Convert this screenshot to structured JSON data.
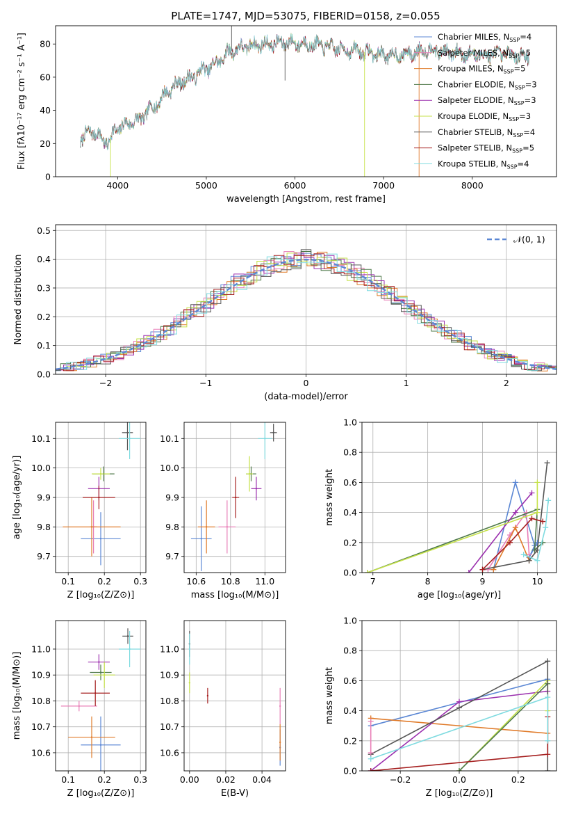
{
  "figure": {
    "title": "PLATE=1747, MJD=53075, FIBERID=0158, z=0.055"
  },
  "colors": {
    "chabrier_miles": "#5b87d4",
    "salpeter_miles": "#e87fb7",
    "kroupa_miles": "#e07b2a",
    "chabrier_elodie": "#4f7a4a",
    "salpeter_elodie": "#9b2fae",
    "kroupa_elodie": "#c6e24a",
    "chabrier_stelib": "#555555",
    "salpeter_stelib": "#a51e1e",
    "kroupa_stelib": "#7fdbe0",
    "normal_line": "#5b87d4"
  },
  "chart_data": [
    {
      "id": "spectrum",
      "type": "line",
      "title": "PLATE=1747, MJD=53075, FIBERID=0158, z=0.055",
      "xlabel": "wavelength [Angstrom, rest frame]",
      "ylabel": "Flux [fλ10⁻¹⁷ erg cm⁻² s⁻¹ A⁻¹]",
      "xlim": [
        3300,
        8950
      ],
      "ylim": [
        0,
        91
      ],
      "xticks": [
        4000,
        5000,
        6000,
        7000,
        8000
      ],
      "yticks": [
        0,
        20,
        40,
        60,
        80
      ],
      "grid": false,
      "legend_position": "top-right",
      "series": [
        {
          "name": "Chabrier MILES, N",
          "sub": "SSP",
          "suffix": "=4"
        },
        {
          "name": "Salpeter MILES, N",
          "sub": "SSP",
          "suffix": "=5"
        },
        {
          "name": "Kroupa MILES, N",
          "sub": "SSP",
          "suffix": "=5"
        },
        {
          "name": "Chabrier ELODIE, N",
          "sub": "SSP",
          "suffix": "=3"
        },
        {
          "name": "Salpeter ELODIE, N",
          "sub": "SSP",
          "suffix": "=3"
        },
        {
          "name": "Kroupa ELODIE, N",
          "sub": "SSP",
          "suffix": "=3"
        },
        {
          "name": "Chabrier STELIB, N",
          "sub": "SSP",
          "suffix": "=4"
        },
        {
          "name": "Salpeter STELIB, N",
          "sub": "SSP",
          "suffix": "=5"
        },
        {
          "name": "Kroupa STELIB, N",
          "sub": "SSP",
          "suffix": "=4"
        }
      ],
      "continuum": [
        [
          3580,
          22
        ],
        [
          3700,
          28
        ],
        [
          3800,
          24
        ],
        [
          3900,
          20
        ],
        [
          3960,
          28
        ],
        [
          4050,
          30
        ],
        [
          4150,
          33
        ],
        [
          4250,
          34
        ],
        [
          4350,
          40
        ],
        [
          4450,
          44
        ],
        [
          4550,
          51
        ],
        [
          4650,
          55
        ],
        [
          4750,
          58
        ],
        [
          4850,
          60
        ],
        [
          4950,
          64
        ],
        [
          5050,
          66
        ],
        [
          5150,
          70
        ],
        [
          5250,
          75
        ],
        [
          5350,
          77
        ],
        [
          5500,
          79
        ],
        [
          5700,
          80
        ],
        [
          5900,
          81
        ],
        [
          6100,
          80
        ],
        [
          6300,
          79
        ],
        [
          6500,
          77
        ],
        [
          6700,
          76
        ],
        [
          6900,
          74
        ],
        [
          7100,
          73
        ],
        [
          7300,
          74
        ],
        [
          7500,
          77
        ],
        [
          7700,
          75
        ],
        [
          7900,
          74
        ],
        [
          8100,
          73
        ],
        [
          8300,
          74
        ],
        [
          8500,
          73
        ],
        [
          8640,
          73
        ]
      ],
      "spikes": [
        {
          "x": 3920,
          "y": 0,
          "series": 5
        },
        {
          "x": 5285,
          "y": 91,
          "series": 6
        },
        {
          "x": 5888,
          "y": 58,
          "series": 6
        },
        {
          "x": 6785,
          "y": 0,
          "series": 5
        },
        {
          "x": 7400,
          "y": 0,
          "series": 2
        }
      ]
    },
    {
      "id": "residuals",
      "type": "line",
      "xlabel": "(data-model)/error",
      "ylabel": "Normed distribution",
      "xlim": [
        -2.5,
        2.5
      ],
      "ylim": [
        0,
        0.52
      ],
      "xticks": [
        -2,
        -1,
        0,
        1,
        2
      ],
      "yticks": [
        0.0,
        0.1,
        0.2,
        0.3,
        0.4,
        0.5
      ],
      "grid": true,
      "legend_position": "top-right",
      "reference": {
        "name": "𝒩(0, 1)",
        "mu": 0,
        "sigma": 1
      }
    },
    {
      "id": "age_vs_z",
      "type": "scatter",
      "xlabel": "Z [log₁₀(Z/Z⊙)]",
      "ylabel": "age  [log₁₀(age/yr)]",
      "xlim": [
        0.065,
        0.315
      ],
      "ylim": [
        9.645,
        10.155
      ],
      "xticks": [
        0.1,
        0.2,
        0.3
      ],
      "yticks": [
        9.7,
        9.8,
        9.9,
        10.0,
        10.1
      ],
      "grid": true,
      "points": [
        {
          "series": 0,
          "x": 0.19,
          "y": 9.76,
          "xerr": 0.055,
          "yerr": 0.09
        },
        {
          "series": 1,
          "x": 0.17,
          "y": 9.8,
          "xerr": 0.01,
          "yerr": 0.09
        },
        {
          "series": 2,
          "x": 0.165,
          "y": 9.8,
          "xerr": 0.08,
          "yerr": 0.1
        },
        {
          "series": 3,
          "x": 0.198,
          "y": 9.98,
          "xerr": 0.03,
          "yerr": 0.025
        },
        {
          "series": 4,
          "x": 0.185,
          "y": 9.93,
          "xerr": 0.03,
          "yerr": 0.04
        },
        {
          "series": 5,
          "x": 0.19,
          "y": 9.98,
          "xerr": 0.025,
          "yerr": 0.02
        },
        {
          "series": 6,
          "x": 0.264,
          "y": 10.12,
          "xerr": 0.015,
          "yerr": 0.06
        },
        {
          "series": 7,
          "x": 0.185,
          "y": 9.9,
          "xerr": 0.045,
          "yerr": 0.04
        },
        {
          "series": 8,
          "x": 0.27,
          "y": 10.1,
          "xerr": 0.03,
          "yerr": 0.07
        }
      ]
    },
    {
      "id": "age_vs_mass",
      "type": "scatter",
      "xlabel": "mass [log₁₀(M/M⊙)]",
      "ylabel": "",
      "xlim": [
        10.53,
        11.12
      ],
      "ylim": [
        9.645,
        10.155
      ],
      "xticks": [
        10.6,
        10.8,
        11.0
      ],
      "yticks": [
        9.7,
        9.8,
        9.9,
        10.0,
        10.1
      ],
      "grid": true,
      "points": [
        {
          "series": 0,
          "x": 10.63,
          "y": 9.76,
          "xerr": 0.06,
          "yerr": 0.11
        },
        {
          "series": 1,
          "x": 10.78,
          "y": 9.8,
          "xerr": 0.05,
          "yerr": 0.09
        },
        {
          "series": 2,
          "x": 10.66,
          "y": 9.8,
          "xerr": 0.05,
          "yerr": 0.09
        },
        {
          "series": 3,
          "x": 10.92,
          "y": 9.98,
          "xerr": 0.03,
          "yerr": 0.025
        },
        {
          "series": 4,
          "x": 10.95,
          "y": 9.93,
          "xerr": 0.03,
          "yerr": 0.04
        },
        {
          "series": 5,
          "x": 10.91,
          "y": 9.98,
          "xerr": 0.02,
          "yerr": 0.06
        },
        {
          "series": 6,
          "x": 11.05,
          "y": 10.12,
          "xerr": 0.02,
          "yerr": 0.03
        },
        {
          "series": 7,
          "x": 10.83,
          "y": 9.9,
          "xerr": 0.02,
          "yerr": 0.07
        },
        {
          "series": 8,
          "x": 11.0,
          "y": 10.1,
          "xerr": 0.04,
          "yerr": 0.07
        }
      ]
    },
    {
      "id": "weight_vs_age",
      "type": "line",
      "xlabel": "age  [log₁₀(age/yr)]",
      "ylabel": "mass weight",
      "xlim": [
        6.8,
        10.35
      ],
      "ylim": [
        0,
        1.0
      ],
      "xticks": [
        7,
        8,
        9,
        10
      ],
      "yticks": [
        0.0,
        0.2,
        0.4,
        0.6,
        0.8,
        1.0
      ],
      "grid": true,
      "lines": [
        {
          "series": 0,
          "points": [
            [
              9.2,
              0.02
            ],
            [
              9.6,
              0.6
            ],
            [
              9.95,
              0.18
            ],
            [
              9.85,
              0.1
            ],
            [
              10.0,
              0.2
            ]
          ]
        },
        {
          "series": 1,
          "points": [
            [
              9.1,
              0.02
            ],
            [
              9.5,
              0.25
            ],
            [
              9.8,
              0.4
            ],
            [
              9.85,
              0.12
            ]
          ]
        },
        {
          "series": 2,
          "points": [
            [
              9.2,
              0.02
            ],
            [
              9.6,
              0.3
            ],
            [
              9.85,
              0.08
            ],
            [
              10.0,
              0.15
            ]
          ]
        },
        {
          "series": 3,
          "points": [
            [
              6.9,
              0.0
            ],
            [
              10.0,
              0.42
            ],
            [
              9.95,
              0.15
            ],
            [
              10.1,
              0.2
            ]
          ]
        },
        {
          "series": 4,
          "points": [
            [
              8.75,
              0.0
            ],
            [
              9.6,
              0.4
            ],
            [
              9.9,
              0.53
            ]
          ]
        },
        {
          "series": 5,
          "points": [
            [
              6.9,
              0.0
            ],
            [
              10.0,
              0.4
            ],
            [
              10.0,
              0.6
            ]
          ]
        },
        {
          "series": 6,
          "points": [
            [
              9.0,
              0.02
            ],
            [
              9.85,
              0.08
            ],
            [
              10.0,
              0.15
            ],
            [
              10.18,
              0.73
            ]
          ]
        },
        {
          "series": 7,
          "points": [
            [
              9.0,
              0.02
            ],
            [
              9.5,
              0.2
            ],
            [
              9.9,
              0.36
            ],
            [
              10.1,
              0.34
            ]
          ]
        },
        {
          "series": 8,
          "points": [
            [
              9.75,
              0.12
            ],
            [
              10.0,
              0.08
            ],
            [
              10.15,
              0.3
            ],
            [
              10.2,
              0.48
            ]
          ]
        }
      ]
    },
    {
      "id": "mass_vs_z",
      "type": "scatter",
      "xlabel": "Z [log₁₀(Z/Z⊙)]",
      "ylabel": "mass [log₁₀(M/M⊙)]",
      "xlim": [
        0.065,
        0.315
      ],
      "ylim": [
        10.53,
        11.11
      ],
      "xticks": [
        0.1,
        0.2,
        0.3
      ],
      "yticks": [
        10.6,
        10.7,
        10.8,
        10.9,
        11.0
      ],
      "grid": true,
      "points": [
        {
          "series": 0,
          "x": 0.19,
          "y": 10.63,
          "xerr": 0.055,
          "yerr": 0.11
        },
        {
          "series": 1,
          "x": 0.13,
          "y": 10.78,
          "xerr": 0.05,
          "yerr": 0.02
        },
        {
          "series": 2,
          "x": 0.165,
          "y": 10.66,
          "xerr": 0.065,
          "yerr": 0.08
        },
        {
          "series": 3,
          "x": 0.19,
          "y": 10.91,
          "xerr": 0.03,
          "yerr": 0.03
        },
        {
          "series": 4,
          "x": 0.185,
          "y": 10.95,
          "xerr": 0.03,
          "yerr": 0.03
        },
        {
          "series": 5,
          "x": 0.2,
          "y": 10.9,
          "xerr": 0.03,
          "yerr": 0.05
        },
        {
          "series": 6,
          "x": 0.265,
          "y": 11.05,
          "xerr": 0.015,
          "yerr": 0.03
        },
        {
          "series": 7,
          "x": 0.175,
          "y": 10.83,
          "xerr": 0.04,
          "yerr": 0.05
        },
        {
          "series": 8,
          "x": 0.27,
          "y": 11.0,
          "xerr": 0.03,
          "yerr": 0.07
        }
      ]
    },
    {
      "id": "mass_vs_ebv",
      "type": "scatter",
      "xlabel": "E(B-V)",
      "ylabel": "",
      "xlim": [
        -0.003,
        0.053
      ],
      "ylim": [
        10.53,
        11.11
      ],
      "xticks": [
        0.0,
        0.02,
        0.04
      ],
      "yticks": [
        10.6,
        10.7,
        10.8,
        10.9,
        11.0
      ],
      "grid": true,
      "points": [
        {
          "series": 6,
          "x": 0.0,
          "y": 11.02,
          "xerr": 0,
          "yerr": 0.05
        },
        {
          "series": 8,
          "x": 0.0,
          "y": 11.0,
          "xerr": 0,
          "yerr": 0.06
        },
        {
          "series": 5,
          "x": 0.0,
          "y": 10.87,
          "xerr": 0,
          "yerr": 0.04
        },
        {
          "series": 7,
          "x": 0.01,
          "y": 10.82,
          "xerr": 0,
          "yerr": 0.03
        },
        {
          "series": 1,
          "x": 0.05,
          "y": 10.78,
          "xerr": 0,
          "yerr": 0.07
        },
        {
          "series": 0,
          "x": 0.05,
          "y": 10.62,
          "xerr": 0,
          "yerr": 0.07
        },
        {
          "series": 2,
          "x": 0.05,
          "y": 10.64,
          "xerr": 0,
          "yerr": 0.07
        }
      ]
    },
    {
      "id": "weight_vs_z",
      "type": "line",
      "xlabel": "Z [log₁₀(Z/Z⊙)]",
      "ylabel": "mass weight",
      "xlim": [
        -0.33,
        0.33
      ],
      "ylim": [
        0,
        1.0
      ],
      "xticks": [
        -0.2,
        0.0,
        0.2
      ],
      "yticks": [
        0.0,
        0.2,
        0.4,
        0.6,
        0.8,
        1.0
      ],
      "grid": true,
      "lines": [
        {
          "series": 0,
          "points": [
            [
              -0.3,
              0.3
            ],
            [
              0.3,
              0.61
            ]
          ]
        },
        {
          "series": 2,
          "points": [
            [
              -0.3,
              0.35
            ],
            [
              0.3,
              0.25
            ]
          ]
        },
        {
          "series": 4,
          "points": [
            [
              -0.3,
              0.0
            ],
            [
              0.0,
              0.46
            ],
            [
              0.3,
              0.53
            ]
          ]
        },
        {
          "series": 5,
          "points": [
            [
              0.0,
              0.0
            ],
            [
              0.3,
              0.6
            ],
            [
              0.3,
              0.4
            ]
          ]
        },
        {
          "series": 3,
          "points": [
            [
              0.0,
              0.0
            ],
            [
              0.3,
              0.58
            ]
          ]
        },
        {
          "series": 6,
          "points": [
            [
              -0.3,
              0.11
            ],
            [
              0.0,
              0.42
            ],
            [
              0.3,
              0.73
            ],
            [
              0.3,
              0.0
            ]
          ]
        },
        {
          "series": 7,
          "points": [
            [
              -0.3,
              0.0
            ],
            [
              0.3,
              0.11
            ],
            [
              0.3,
              0.36
            ]
          ]
        },
        {
          "series": 8,
          "points": [
            [
              -0.3,
              0.08
            ],
            [
              0.3,
              0.49
            ],
            [
              0.3,
              0.2
            ]
          ]
        },
        {
          "series": 1,
          "points": [
            [
              -0.3,
              0.33
            ],
            [
              -0.3,
              0.12
            ]
          ]
        }
      ]
    }
  ]
}
